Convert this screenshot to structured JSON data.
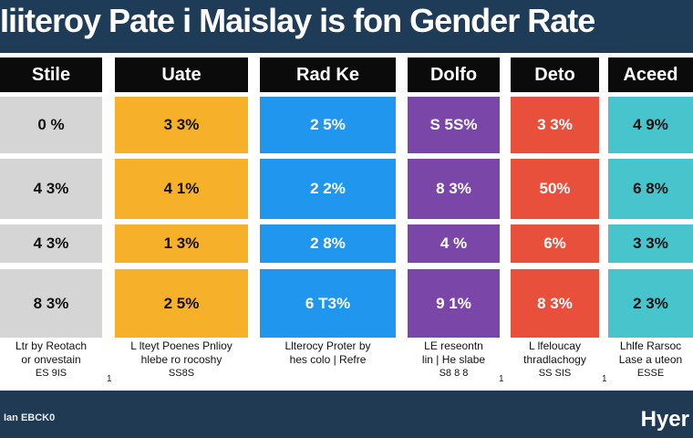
{
  "title": "Iiiteroy Pate i Maislay is fon Gender Rate",
  "footer": {
    "left": "Ian EBCK0",
    "right": "Hyer"
  },
  "colors": {
    "gray": "#d5d5d5",
    "orange": "#f6b02a",
    "blue": "#2196ee",
    "purple": "#7a47a8",
    "red": "#e9503b",
    "teal": "#48c4cc",
    "header": "#0b0b0b",
    "background": "#1f3a52"
  },
  "chart_data": {
    "type": "table",
    "title": "Iiiteroy Pate i Maislay is fon Gender Rate",
    "columns": [
      {
        "header": "Stile",
        "color": "#d5d5d5",
        "text_color": "#111111",
        "values": [
          "0 %",
          "4 3%",
          "4 3%",
          "8 3%"
        ],
        "caption": [
          "Ltr by Reotach",
          "or onvestain",
          "ES 9IS"
        ]
      },
      {
        "header": "Uate",
        "color": "#f6b02a",
        "text_color": "#111111",
        "values": [
          "3 3%",
          "4 1%",
          "1 3%",
          "2 5%"
        ],
        "caption": [
          "L lteyt Poenes Pnlioy",
          "hlebe ro rocoshy",
          "SS8S"
        ]
      },
      {
        "header": "Rad Ke",
        "color": "#2196ee",
        "text_color": "#ffffff",
        "values": [
          "2 5%",
          "2 2%",
          "2 8%",
          "6 T3%"
        ],
        "caption": [
          "Llterocy Proter by",
          "hes colo | Refre",
          ""
        ]
      },
      {
        "header": "Dolfo",
        "color": "#7a47a8",
        "text_color": "#ffffff",
        "values": [
          "S 5S%",
          "8 3%",
          "4 %",
          "9 1%"
        ],
        "caption": [
          "LE reseontn",
          "lin | He slabe",
          "S8 8 8"
        ]
      },
      {
        "header": "Deto",
        "color": "#e9503b",
        "text_color": "#ffffff",
        "values": [
          "3 3%",
          "50%",
          "6%",
          "8 3%"
        ],
        "caption": [
          "L lfeloucay",
          "thradlachogy",
          "SS SIS"
        ]
      },
      {
        "header": "Aceed",
        "color": "#48c4cc",
        "text_color": "#111111",
        "values": [
          "4 9%",
          "6 8%",
          "3 3%",
          "2 3%"
        ],
        "caption": [
          "Lhlfe Rarsoc",
          "Lase a uteon",
          "ESSE"
        ]
      }
    ],
    "stray_marks": [
      "1",
      "1",
      "1"
    ]
  }
}
